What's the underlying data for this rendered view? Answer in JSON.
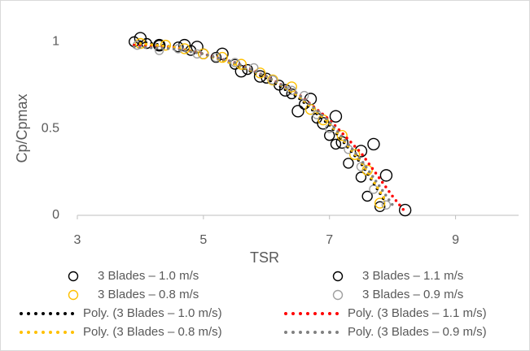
{
  "chart_data": {
    "type": "scatter",
    "x_label": "TSR",
    "y_label": "Cp/Cpmax",
    "xlim": [
      3,
      10
    ],
    "xticks": [
      3,
      5,
      7,
      9
    ],
    "ylim": [
      0,
      1.1
    ],
    "yticks": [
      0,
      0.5,
      1
    ],
    "grid": false,
    "legend": "bottom",
    "series": [
      {
        "name": "3 Blades – 1.0 m/s",
        "type": "scatter",
        "color": "#000000",
        "x": [
          3.9,
          4.1,
          4.3,
          4.6,
          4.8,
          5.0,
          5.2,
          5.5,
          5.7,
          6.0,
          6.2,
          6.4,
          6.6,
          6.8,
          7.0,
          7.1,
          7.3,
          7.5,
          7.6,
          7.8
        ],
        "values": [
          1.0,
          0.99,
          0.98,
          0.97,
          0.95,
          0.93,
          0.91,
          0.87,
          0.84,
          0.79,
          0.75,
          0.7,
          0.64,
          0.56,
          0.46,
          0.41,
          0.3,
          0.22,
          0.11,
          0.05
        ]
      },
      {
        "name": "3 Blades – 1.1 m/s",
        "type": "scatter",
        "color": "#000000",
        "x": [
          4.0,
          4.3,
          4.7,
          4.9,
          5.3,
          5.6,
          5.9,
          6.3,
          6.5,
          6.7,
          6.9,
          7.1,
          7.2,
          7.5,
          7.7,
          7.9,
          8.2
        ],
        "values": [
          1.02,
          0.98,
          0.98,
          0.97,
          0.93,
          0.83,
          0.8,
          0.72,
          0.6,
          0.67,
          0.53,
          0.57,
          0.42,
          0.37,
          0.41,
          0.23,
          0.03
        ]
      },
      {
        "name": "3 Blades – 0.8 m/s",
        "type": "scatter",
        "color": "#ffc000",
        "x": [
          4.0,
          4.4,
          4.7,
          5.0,
          5.3,
          5.6,
          5.9,
          6.1,
          6.4,
          6.7,
          6.9,
          7.2,
          7.4,
          7.6,
          7.8
        ],
        "values": [
          0.99,
          0.98,
          0.96,
          0.93,
          0.91,
          0.87,
          0.82,
          0.78,
          0.74,
          0.61,
          0.55,
          0.46,
          0.35,
          0.26,
          0.07
        ]
      },
      {
        "name": "3 Blades – 0.9 m/s",
        "type": "scatter",
        "color": "#a0a0a0",
        "x": [
          3.95,
          4.3,
          4.6,
          4.9,
          5.2,
          5.5,
          5.8,
          6.1,
          6.4,
          6.6,
          6.8,
          7.0,
          7.3,
          7.5,
          7.7,
          7.9
        ],
        "values": [
          0.98,
          0.95,
          0.96,
          0.93,
          0.91,
          0.88,
          0.85,
          0.78,
          0.72,
          0.69,
          0.58,
          0.5,
          0.38,
          0.28,
          0.15,
          0.06
        ]
      },
      {
        "name": "Poly. (3 Blades – 1.0 m/s)",
        "type": "trendline",
        "color": "#000000",
        "x": [
          4.0,
          4.5,
          5.0,
          5.5,
          6.0,
          6.5,
          7.0,
          7.5,
          7.9
        ],
        "values": [
          1.0,
          0.97,
          0.93,
          0.87,
          0.79,
          0.68,
          0.52,
          0.3,
          0.07
        ]
      },
      {
        "name": "Poly. (3 Blades – 1.1 m/s)",
        "type": "trendline",
        "color": "#ff0000",
        "x": [
          3.9,
          4.5,
          5.0,
          5.5,
          6.0,
          6.5,
          7.0,
          7.5,
          8.0,
          8.2
        ],
        "values": [
          0.98,
          0.97,
          0.93,
          0.88,
          0.8,
          0.7,
          0.55,
          0.36,
          0.11,
          0.02
        ]
      },
      {
        "name": "Poly. (3 Blades – 0.8 m/s)",
        "type": "trendline",
        "color": "#ffc000",
        "x": [
          4.0,
          4.5,
          5.0,
          5.5,
          6.0,
          6.5,
          7.0,
          7.5,
          7.9
        ],
        "values": [
          0.99,
          0.97,
          0.93,
          0.87,
          0.8,
          0.69,
          0.53,
          0.31,
          0.08
        ]
      },
      {
        "name": "Poly. (3 Blades – 0.9 m/s)",
        "type": "trendline",
        "color": "#808080",
        "x": [
          3.9,
          4.5,
          5.0,
          5.5,
          6.0,
          6.5,
          7.0,
          7.5,
          8.0
        ],
        "values": [
          0.97,
          0.96,
          0.93,
          0.88,
          0.8,
          0.7,
          0.54,
          0.32,
          0.06
        ]
      }
    ]
  }
}
